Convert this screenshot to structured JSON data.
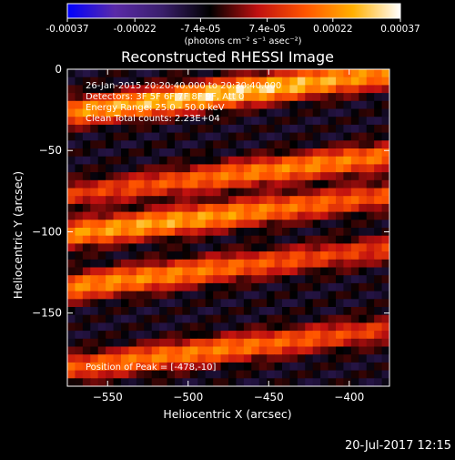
{
  "colorbar": {
    "tick_labels": [
      "-0.00037",
      "-0.00022",
      "-7.4e-05",
      "7.4e-05",
      "0.00022",
      "0.00037"
    ],
    "tick_values": [
      -0.00037,
      -0.00022,
      -7.4e-05,
      7.4e-05,
      0.00022,
      0.00037
    ],
    "range": [
      -0.00037,
      0.00037
    ],
    "unit_label": "(photons cm⁻² s⁻¹ asec⁻²)",
    "colors": [
      "#0000ff",
      "#5a2aa8",
      "#3a1f6b",
      "#000000",
      "#c01010",
      "#ff5500",
      "#ffb000",
      "#ffffff"
    ]
  },
  "chart_data": {
    "type": "heatmap",
    "title": "Reconstructed RHESSI Image",
    "xlabel": "Heliocentric X (arcsec)",
    "ylabel": "Heliocentric Y (arcsec)",
    "xlim": [
      -575,
      -375
    ],
    "ylim": [
      -195,
      0
    ],
    "x_ticks": [
      -550,
      -500,
      -450,
      -400
    ],
    "y_ticks": [
      0,
      -50,
      -100,
      -150
    ],
    "bands": [
      {
        "y_center": -15,
        "peak_x": -478,
        "value": 0.00037
      },
      {
        "y_center": -60,
        "peak_x": -430,
        "value": 0.00025
      },
      {
        "y_center": -95,
        "peak_x": -520,
        "value": 0.0003
      },
      {
        "y_center": -130,
        "peak_x": -540,
        "value": 0.00026
      },
      {
        "y_center": -175,
        "peak_x": -500,
        "value": 0.00024
      }
    ],
    "annotations": {
      "line1": "26-Jan-2015 20:20:40.000 to 20:30:40.000",
      "line2": "Detectors: 3F 5F 6F 7F 8F 9F, Att 0",
      "line3": "Energy Range: 25.0 - 50.0 keV",
      "line4": "Clean     Total counts: 2.23E+04",
      "peak": "Position of Peak = [-478,-10]"
    }
  },
  "footer": {
    "timestamp": "20-Jul-2017 12:15"
  }
}
